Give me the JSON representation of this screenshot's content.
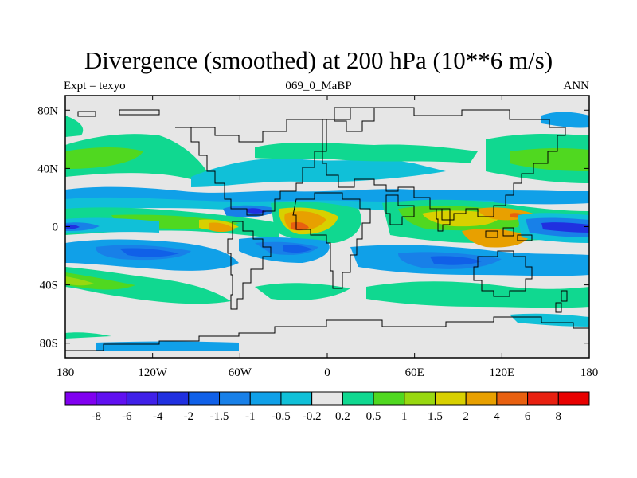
{
  "title": "Divergence (smoothed) at 200 hPa (10**6 m/s)",
  "subtitle_left": "Expt = texyo",
  "subtitle_center": "069_0_MaBP",
  "subtitle_right": "ANN",
  "chart_data": {
    "type": "heatmap",
    "projection": "cylindrical-equidistant",
    "x_range": [
      -180,
      180
    ],
    "y_range": [
      -90,
      90
    ],
    "x_ticks": [
      {
        "value": -180,
        "label": "180"
      },
      {
        "value": -120,
        "label": "120W"
      },
      {
        "value": -60,
        "label": "60W"
      },
      {
        "value": 0,
        "label": "0"
      },
      {
        "value": 60,
        "label": "60E"
      },
      {
        "value": 120,
        "label": "120E"
      },
      {
        "value": 180,
        "label": "180"
      }
    ],
    "y_ticks": [
      {
        "value": 80,
        "label": "80N"
      },
      {
        "value": 40,
        "label": "40N"
      },
      {
        "value": 0,
        "label": "0"
      },
      {
        "value": -40,
        "label": "40S"
      },
      {
        "value": -80,
        "label": "80S"
      }
    ],
    "colorbar": {
      "boundary_labels": [
        "-8",
        "-6",
        "-4",
        "-2",
        "-1.5",
        "-1",
        "-0.5",
        "-0.2",
        "0.2",
        "0.5",
        "1",
        "1.5",
        "2",
        "4",
        "6",
        "8"
      ],
      "colors": [
        "#8000f0",
        "#6010f0",
        "#4020e8",
        "#2030e0",
        "#1060e8",
        "#1880e8",
        "#10a0e8",
        "#10c0d8",
        "#e6e6e6",
        "#10d890",
        "#50d820",
        "#98d810",
        "#d8d000",
        "#e8a000",
        "#e86010",
        "#e82010",
        "#e80000"
      ]
    },
    "regions": [
      {
        "lon": -10,
        "lat": 0,
        "rlon": 8,
        "rlat": 6,
        "value": 4
      },
      {
        "lon": -25,
        "lat": -15,
        "rlon": 18,
        "rlat": 6,
        "value": -1.5
      },
      {
        "lon": -105,
        "lat": -25,
        "rlon": 45,
        "rlat": 10,
        "value": -1
      },
      {
        "lon": -160,
        "lat": -38,
        "rlon": 20,
        "rlat": 10,
        "value": 1
      },
      {
        "lon": -150,
        "lat": 10,
        "rlon": 30,
        "rlat": 5,
        "value": 0.5
      },
      {
        "lon": -90,
        "lat": 5,
        "rlon": 30,
        "rlat": 4,
        "value": -0.5
      },
      {
        "lon": -45,
        "lat": 8,
        "rlon": 12,
        "rlat": 4,
        "value": -2
      },
      {
        "lon": -50,
        "lat": -3,
        "rlon": 8,
        "rlat": 6,
        "value": 2
      },
      {
        "lon": -5,
        "lat": 10,
        "rlon": 14,
        "rlat": 4,
        "value": 2
      },
      {
        "lon": 80,
        "lat": 10,
        "rlon": 30,
        "rlat": 5,
        "value": 1
      },
      {
        "lon": 105,
        "lat": -8,
        "rlon": 30,
        "rlat": 6,
        "value": 2
      },
      {
        "lon": 130,
        "lat": 10,
        "rlon": 10,
        "rlat": 4,
        "value": 4
      },
      {
        "lon": 160,
        "lat": 0,
        "rlon": 22,
        "rlat": 5,
        "value": -4
      },
      {
        "lon": 80,
        "lat": -25,
        "rlon": 30,
        "rlat": 8,
        "value": -1
      },
      {
        "lon": 150,
        "lat": -25,
        "rlon": 25,
        "rlat": 8,
        "value": -0.5
      },
      {
        "lon": 30,
        "lat": 35,
        "rlon": 40,
        "rlat": 8,
        "value": 0.5
      },
      {
        "lon": 140,
        "lat": 45,
        "rlon": 30,
        "rlat": 8,
        "value": 1
      },
      {
        "lon": -165,
        "lat": 45,
        "rlon": 20,
        "rlat": 8,
        "value": 1
      }
    ]
  }
}
